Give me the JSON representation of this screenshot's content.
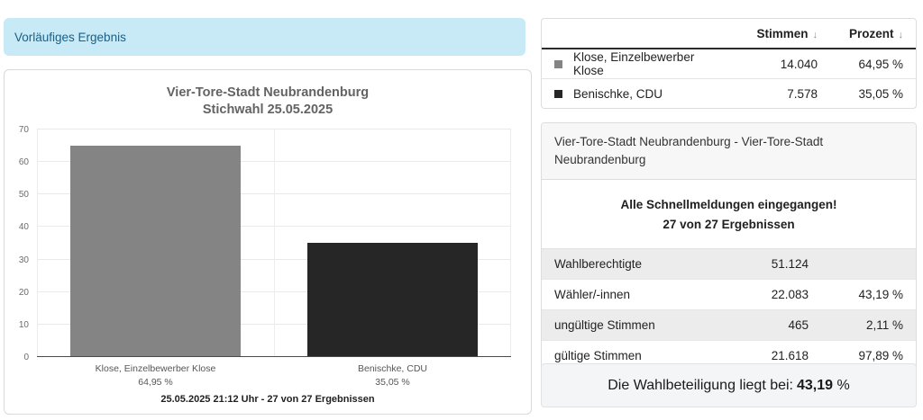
{
  "banner": {
    "label": "Vorläufiges Ergebnis"
  },
  "chart": {
    "title_line1": "Vier-Tore-Stadt Neubrandenburg",
    "title_line2": "Stichwahl 25.05.2025",
    "footer": "25.05.2025 21:12 Uhr - 27 von 27 Ergebnissen"
  },
  "chart_data": {
    "type": "bar",
    "title": "Vier-Tore-Stadt Neubrandenburg Stichwahl 25.05.2025",
    "categories": [
      "Klose, Einzelbewerber Klose",
      "Benischke, CDU"
    ],
    "values": [
      64.95,
      35.05
    ],
    "value_labels": [
      "64,95 %",
      "35,05 %"
    ],
    "bar_colors": [
      "#848484",
      "#262626"
    ],
    "ylim": [
      0,
      70
    ],
    "yticks": [
      0,
      10,
      20,
      30,
      40,
      50,
      60,
      70
    ],
    "grid": true,
    "legend_position": "none",
    "xlabel": "",
    "ylabel": ""
  },
  "results_table": {
    "headers": {
      "stimmen": "Stimmen",
      "prozent": "Prozent",
      "sort_icon": "↓"
    },
    "rows": [
      {
        "color": "#848484",
        "name": "Klose, Einzelbewerber Klose",
        "stimmen": "14.040",
        "prozent": "64,95 %"
      },
      {
        "color": "#262626",
        "name": "Benischke, CDU",
        "stimmen": "7.578",
        "prozent": "35,05 %"
      }
    ]
  },
  "info_panel": {
    "header": "Vier-Tore-Stadt Neubrandenburg - Vier-Tore-Stadt Neubrandenburg",
    "message_line1": "Alle Schnellmeldungen eingegangen!",
    "message_line2": "27 von 27 Ergebnissen",
    "stats": [
      {
        "label": "Wahlberechtigte",
        "value": "51.124",
        "percent": ""
      },
      {
        "label": "Wähler/-innen",
        "value": "22.083",
        "percent": "43,19 %"
      },
      {
        "label": "ungültige Stimmen",
        "value": "465",
        "percent": "2,11 %"
      },
      {
        "label": "gültige Stimmen",
        "value": "21.618",
        "percent": "97,89 %"
      }
    ]
  },
  "turnout": {
    "prefix": "Die Wahlbeteiligung liegt bei:",
    "value": "43,19",
    "suffix": "%"
  },
  "colors": {
    "banner_bg": "#c8eaf6",
    "banner_text": "#19608a",
    "bar_gray": "#848484",
    "bar_dark": "#262626"
  }
}
